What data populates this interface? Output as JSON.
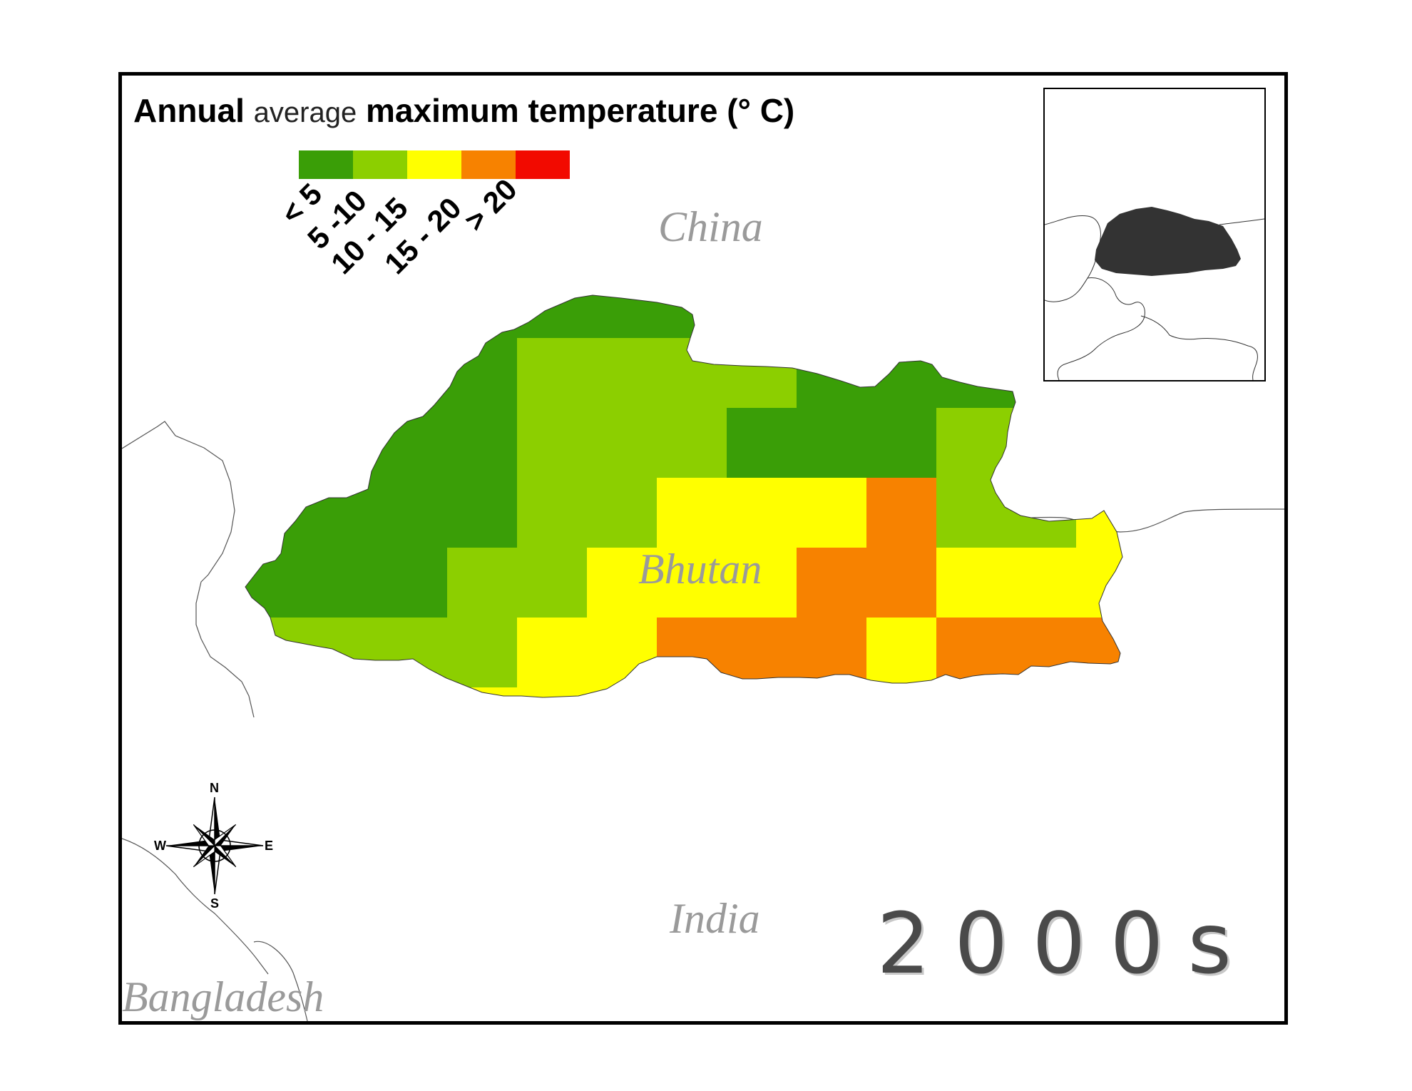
{
  "title": {
    "part1": "Annual",
    "part2": "average",
    "part3": "maximum temperature (° C)"
  },
  "legend": {
    "classes": [
      {
        "label": "< 5",
        "color": "#3a9e07"
      },
      {
        "label": "5 -10",
        "color": "#8ccf00"
      },
      {
        "label": "10 - 15",
        "color": "#ffff00"
      },
      {
        "label": "15 - 20",
        "color": "#f78200"
      },
      {
        "label": "> 20",
        "color": "#f20a00"
      }
    ]
  },
  "labels": {
    "china": "China",
    "bhutan": "Bhutan",
    "india": "India",
    "bangladesh": "Bangladesh"
  },
  "decade": "2000s",
  "compass": {
    "n": "N",
    "s": "S",
    "e": "E",
    "w": "W"
  },
  "inset": {
    "highlight_color": "#333333"
  }
}
